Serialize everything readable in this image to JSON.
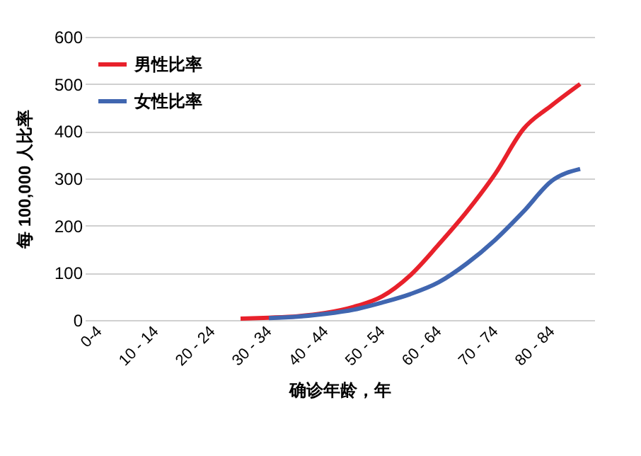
{
  "chart_data": {
    "type": "line",
    "xlabel": "确诊年龄，年",
    "ylabel": "每 100,000 人比率",
    "categories": [
      "0-4",
      null,
      "10 - 14",
      null,
      "20 - 24",
      null,
      "30 - 34",
      null,
      "40 - 44",
      null,
      "50 - 54",
      null,
      "60 - 64",
      null,
      "70 - 74",
      null,
      "80 - 84",
      null
    ],
    "series": [
      {
        "name": "男性比率",
        "color": "#e8212b",
        "values": [
          null,
          null,
          null,
          null,
          null,
          3,
          5,
          8,
          15,
          28,
          50,
          95,
          160,
          230,
          310,
          405,
          455,
          500
        ]
      },
      {
        "name": "女性比率",
        "color": "#4066b0",
        "values": [
          null,
          null,
          null,
          null,
          null,
          null,
          4,
          7,
          13,
          22,
          37,
          55,
          80,
          120,
          170,
          230,
          295,
          320
        ]
      }
    ],
    "ylim": [
      0,
      600
    ],
    "yticks": [
      0,
      100,
      200,
      300,
      400,
      500,
      600
    ],
    "grid": "y",
    "legend": "top left",
    "marker": "none",
    "line_style": "solid"
  }
}
